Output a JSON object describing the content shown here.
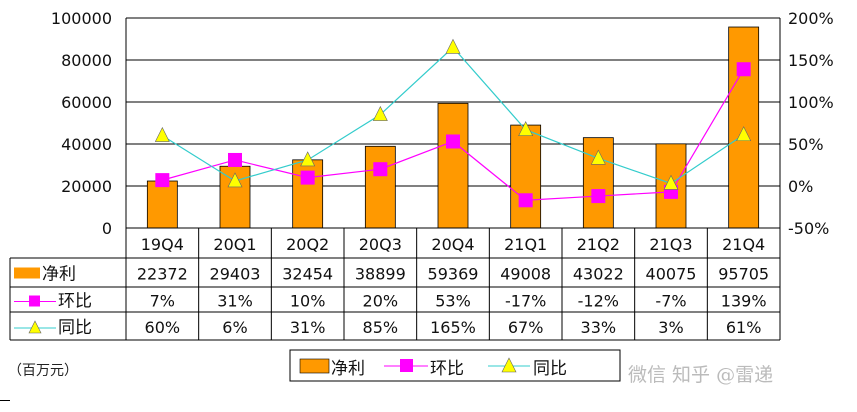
{
  "chart_data": {
    "type": "bar+line",
    "unit_label": "（百万元）",
    "categories": [
      "19Q4",
      "20Q1",
      "20Q2",
      "20Q3",
      "20Q4",
      "21Q1",
      "21Q2",
      "21Q3",
      "21Q4"
    ],
    "series": [
      {
        "name": "净利",
        "kind": "bar",
        "axis": "left",
        "color": "#FF9900",
        "values": [
          22372,
          29403,
          32454,
          38899,
          59369,
          49008,
          43022,
          40075,
          95705
        ],
        "labels": [
          "22372",
          "29403",
          "32454",
          "38899",
          "59369",
          "49008",
          "43022",
          "40075",
          "95705"
        ]
      },
      {
        "name": "环比",
        "kind": "line",
        "axis": "right",
        "color": "#FF00FF",
        "marker": "square",
        "values": [
          7,
          31,
          10,
          20,
          53,
          -17,
          -12,
          -7,
          139
        ],
        "labels": [
          "7%",
          "31%",
          "10%",
          "20%",
          "53%",
          "-17%",
          "-12%",
          "-7%",
          "139%"
        ]
      },
      {
        "name": "同比",
        "kind": "line",
        "axis": "right",
        "color": "#33CCCC",
        "marker": "triangle",
        "marker_color": "#FFFF00",
        "values": [
          60,
          6,
          31,
          85,
          165,
          67,
          33,
          3,
          61
        ],
        "labels": [
          "60%",
          "6%",
          "31%",
          "85%",
          "165%",
          "67%",
          "33%",
          "3%",
          "61%"
        ]
      }
    ],
    "y_left": {
      "range": [
        0,
        100000
      ],
      "ticks": [
        "0",
        "20000",
        "40000",
        "60000",
        "80000",
        "100000"
      ]
    },
    "y_right": {
      "range": [
        -50,
        200
      ],
      "ticks": [
        "-50%",
        "0%",
        "50%",
        "100%",
        "150%",
        "200%"
      ]
    },
    "grid": true,
    "legend": "bottom",
    "data_table": true
  },
  "watermark": "微信 知乎 @雷递"
}
